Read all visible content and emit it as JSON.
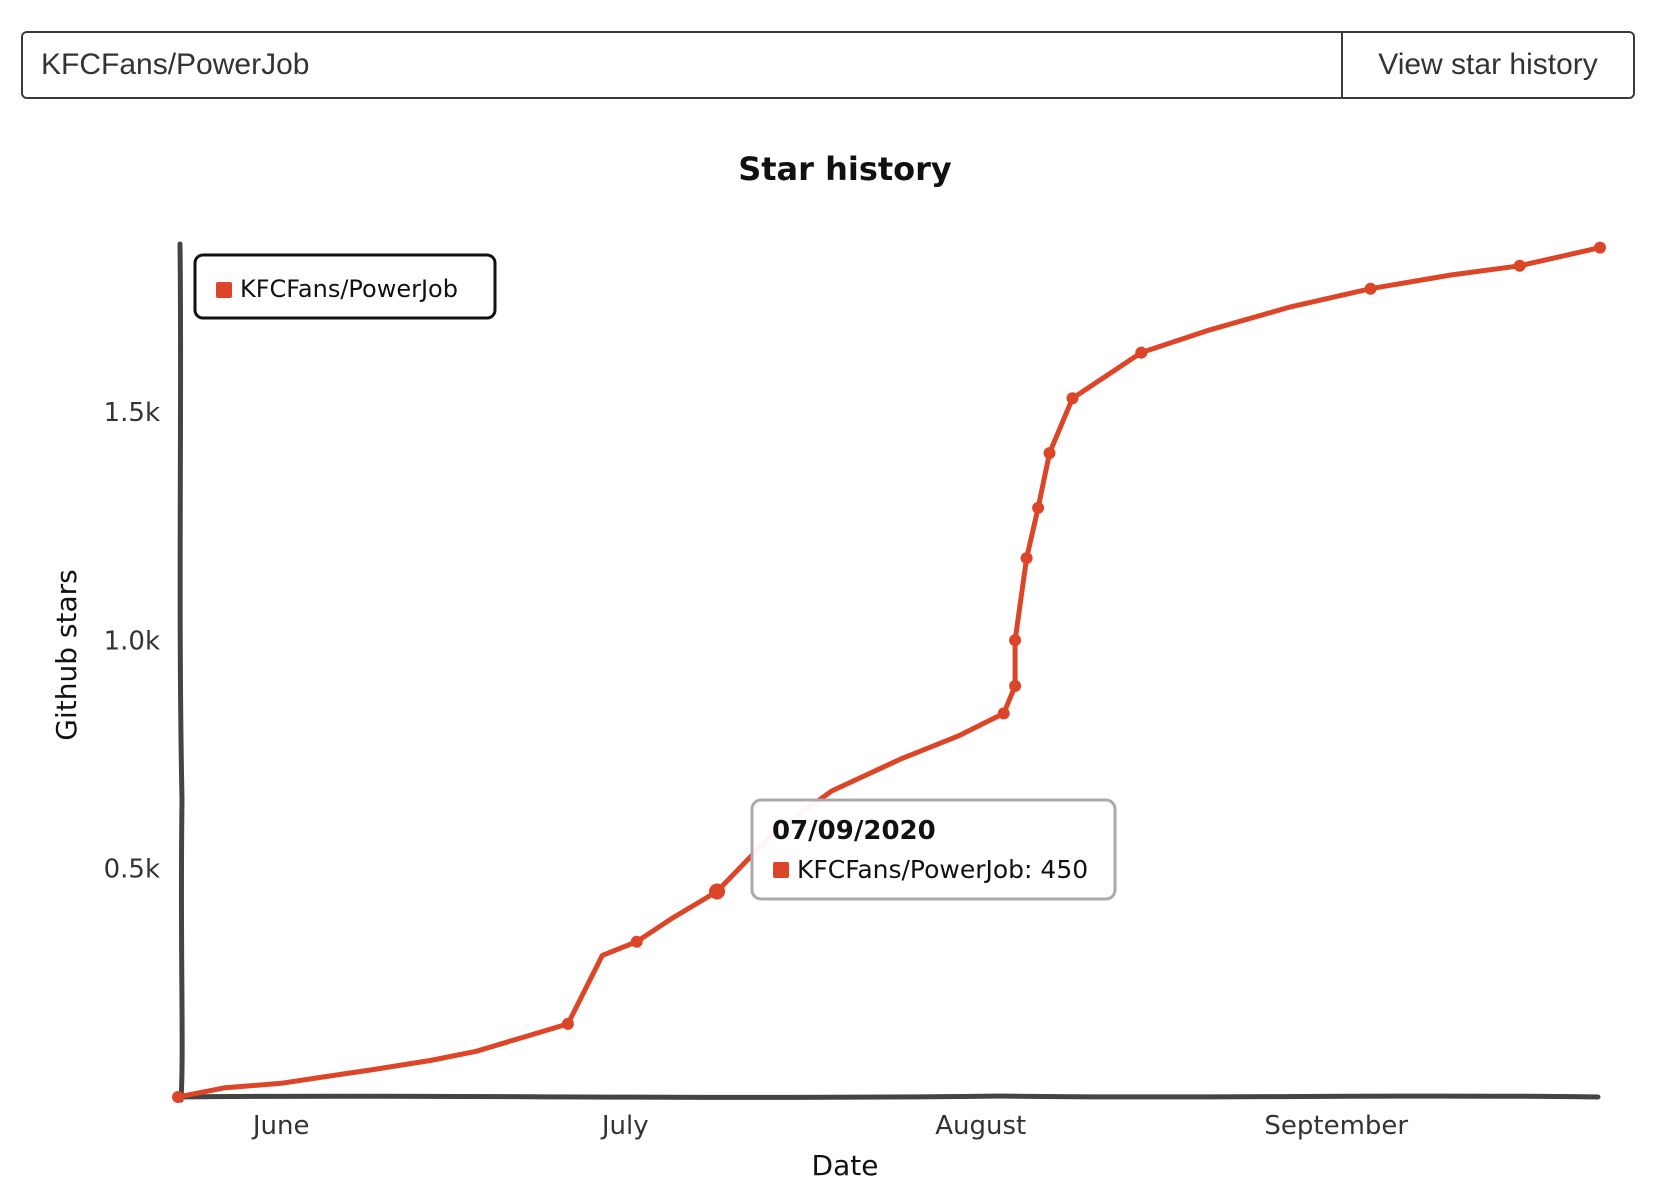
{
  "search": {
    "value": "KFCFans/PowerJob",
    "button_label": "View star history"
  },
  "chart_data": {
    "type": "line",
    "title": "Star history",
    "xlabel": "Date",
    "ylabel": "Github stars",
    "x_ticks": [
      "June",
      "July",
      "August",
      "September"
    ],
    "y_ticks": [
      "0.5k",
      "1.0k",
      "1.5k"
    ],
    "ylim": [
      0,
      1870
    ],
    "grid": false,
    "legend_position": "top-left",
    "series": [
      {
        "name": "KFCFans/PowerJob",
        "color": "#dd4528",
        "points": [
          {
            "x": "2020-05-23",
            "y": 0
          },
          {
            "x": "2020-05-27",
            "y": 20
          },
          {
            "x": "2020-06-01",
            "y": 30
          },
          {
            "x": "2020-06-05",
            "y": 45
          },
          {
            "x": "2020-06-09",
            "y": 60
          },
          {
            "x": "2020-06-14",
            "y": 80
          },
          {
            "x": "2020-06-18",
            "y": 100
          },
          {
            "x": "2020-06-22",
            "y": 130
          },
          {
            "x": "2020-06-26",
            "y": 160
          },
          {
            "x": "2020-06-29",
            "y": 310
          },
          {
            "x": "2020-07-02",
            "y": 340
          },
          {
            "x": "2020-07-05",
            "y": 390
          },
          {
            "x": "2020-07-09",
            "y": 450
          },
          {
            "x": "2020-07-14",
            "y": 580
          },
          {
            "x": "2020-07-19",
            "y": 670
          },
          {
            "x": "2020-07-25",
            "y": 740
          },
          {
            "x": "2020-07-30",
            "y": 790
          },
          {
            "x": "2020-08-03",
            "y": 840
          },
          {
            "x": "2020-08-04",
            "y": 900
          },
          {
            "x": "2020-08-04",
            "y": 1000
          },
          {
            "x": "2020-08-05",
            "y": 1180
          },
          {
            "x": "2020-08-06",
            "y": 1290
          },
          {
            "x": "2020-08-07",
            "y": 1410
          },
          {
            "x": "2020-08-09",
            "y": 1530
          },
          {
            "x": "2020-08-15",
            "y": 1630
          },
          {
            "x": "2020-08-21",
            "y": 1680
          },
          {
            "x": "2020-08-28",
            "y": 1730
          },
          {
            "x": "2020-09-04",
            "y": 1770
          },
          {
            "x": "2020-09-11",
            "y": 1800
          },
          {
            "x": "2020-09-17",
            "y": 1820
          },
          {
            "x": "2020-09-24",
            "y": 1860
          }
        ]
      }
    ],
    "tooltip": {
      "date": "07/09/2020",
      "label": "KFCFans/PowerJob: 450"
    }
  }
}
